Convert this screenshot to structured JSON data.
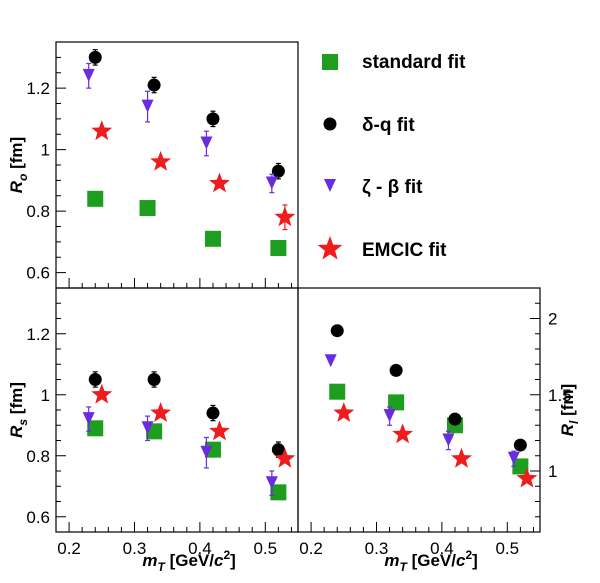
{
  "chart_data": [
    {
      "id": "ro",
      "type": "scatter",
      "title": "",
      "xlabel": "",
      "ylabel": "R_o [fm]",
      "xlim": [
        0.18,
        0.55
      ],
      "ylim": [
        0.55,
        1.35
      ],
      "yticks": [
        "0.6",
        "0.8",
        "1",
        "1.2"
      ],
      "xticks": [],
      "grid": false,
      "series": [
        {
          "name": "standard fit",
          "marker": "square",
          "color": "#1e9e1e",
          "x": [
            0.24,
            0.32,
            0.42,
            0.52
          ],
          "y": [
            0.84,
            0.81,
            0.71,
            0.68
          ],
          "err": [
            0,
            0,
            0,
            0
          ]
        },
        {
          "name": "δ-q fit",
          "marker": "circle",
          "color": "#000000",
          "x": [
            0.24,
            0.33,
            0.42,
            0.52
          ],
          "y": [
            1.3,
            1.21,
            1.1,
            0.93
          ],
          "err": [
            0.025,
            0.025,
            0.025,
            0.025
          ]
        },
        {
          "name": "ζ - β fit",
          "marker": "triangle-down",
          "color": "#6a2ce0",
          "x": [
            0.23,
            0.32,
            0.41,
            0.51
          ],
          "y": [
            1.24,
            1.14,
            1.02,
            0.89
          ],
          "err": [
            0.04,
            0.05,
            0.04,
            0.03
          ]
        },
        {
          "name": "EMCIC fit",
          "marker": "star",
          "color": "#ee1c1c",
          "x": [
            0.25,
            0.34,
            0.43,
            0.53
          ],
          "y": [
            1.06,
            0.96,
            0.89,
            0.78
          ],
          "err": [
            0,
            0,
            0,
            0.04
          ]
        }
      ]
    },
    {
      "id": "rs",
      "type": "scatter",
      "title": "",
      "xlabel": "m_T [GeV/c^2]",
      "ylabel": "R_s [fm]",
      "xlim": [
        0.18,
        0.55
      ],
      "ylim": [
        0.55,
        1.35
      ],
      "yticks": [
        "0.6",
        "0.8",
        "1",
        "1.2"
      ],
      "xticks": [
        "0.2",
        "0.3",
        "0.4",
        "0.5"
      ],
      "grid": false,
      "series": [
        {
          "name": "standard fit",
          "marker": "square",
          "color": "#1e9e1e",
          "x": [
            0.24,
            0.33,
            0.42,
            0.52
          ],
          "y": [
            0.89,
            0.88,
            0.82,
            0.68
          ],
          "err": [
            0,
            0,
            0,
            0
          ]
        },
        {
          "name": "δ-q fit",
          "marker": "circle",
          "color": "#000000",
          "x": [
            0.24,
            0.33,
            0.42,
            0.52
          ],
          "y": [
            1.05,
            1.05,
            0.94,
            0.82
          ],
          "err": [
            0.025,
            0.025,
            0.025,
            0.025
          ]
        },
        {
          "name": "ζ - β fit",
          "marker": "triangle-down",
          "color": "#6a2ce0",
          "x": [
            0.23,
            0.32,
            0.41,
            0.51
          ],
          "y": [
            0.92,
            0.89,
            0.81,
            0.71
          ],
          "err": [
            0.04,
            0.04,
            0.05,
            0.04
          ]
        },
        {
          "name": "EMCIC fit",
          "marker": "star",
          "color": "#ee1c1c",
          "x": [
            0.25,
            0.34,
            0.43,
            0.53
          ],
          "y": [
            1.0,
            0.94,
            0.88,
            0.79
          ],
          "err": [
            0,
            0,
            0,
            0
          ]
        }
      ]
    },
    {
      "id": "rl",
      "type": "scatter",
      "title": "",
      "xlabel": "m_T [GeV/c^2]",
      "ylabel": "R_l [fm]",
      "xlim": [
        0.18,
        0.55
      ],
      "ylim": [
        0.6,
        2.2
      ],
      "yticks": [
        "1",
        "1.5",
        "2"
      ],
      "xticks": [
        "0.2",
        "0.3",
        "0.4",
        "0.5"
      ],
      "grid": false,
      "series": [
        {
          "name": "standard fit",
          "marker": "square",
          "color": "#1e9e1e",
          "x": [
            0.24,
            0.33,
            0.42,
            0.52
          ],
          "y": [
            1.52,
            1.45,
            1.3,
            1.03
          ],
          "err": [
            0,
            0,
            0,
            0
          ]
        },
        {
          "name": "δ-q fit",
          "marker": "circle",
          "color": "#000000",
          "x": [
            0.24,
            0.33,
            0.42,
            0.52
          ],
          "y": [
            1.92,
            1.66,
            1.34,
            1.17
          ],
          "err": [
            0.03,
            0.03,
            0.03,
            0.03
          ]
        },
        {
          "name": "ζ - β fit",
          "marker": "triangle-down",
          "color": "#6a2ce0",
          "x": [
            0.23,
            0.32,
            0.41,
            0.51
          ],
          "y": [
            1.72,
            1.36,
            1.2,
            1.08
          ],
          "err": [
            0,
            0.06,
            0.06,
            0.05
          ]
        },
        {
          "name": "EMCIC fit",
          "marker": "star",
          "color": "#ee1c1c",
          "x": [
            0.25,
            0.34,
            0.43,
            0.53
          ],
          "y": [
            1.38,
            1.24,
            1.08,
            0.95
          ],
          "err": [
            0,
            0,
            0,
            0
          ]
        }
      ]
    }
  ],
  "legend": [
    {
      "label": "standard fit",
      "marker": "square",
      "color": "#1e9e1e"
    },
    {
      "label": "δ-q fit",
      "marker": "circle",
      "color": "#000000"
    },
    {
      "label": "ζ - β fit",
      "marker": "triangle-down",
      "color": "#6a2ce0"
    },
    {
      "label": "EMCIC fit",
      "marker": "star",
      "color": "#ee1c1c"
    }
  ]
}
